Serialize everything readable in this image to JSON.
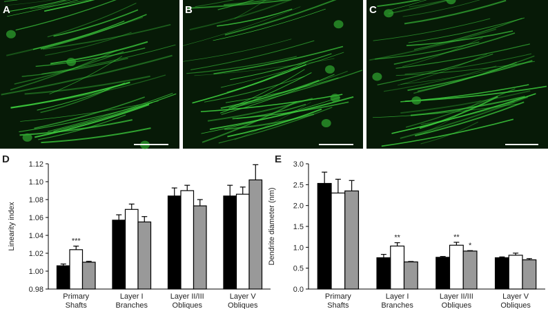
{
  "panels": [
    "A",
    "B",
    "C"
  ],
  "chart_data": [
    {
      "type": "bar",
      "panel_label": "D",
      "y_label": "Linearity index",
      "categories": [
        "Primary\nShafts",
        "Layer I\nBranches",
        "Layer II/III\nObliques",
        "Layer V\nObliques"
      ],
      "series": [
        {
          "color": "#000000",
          "values": [
            1.006,
            1.057,
            1.084,
            1.084
          ],
          "errors": [
            0.002,
            0.006,
            0.009,
            0.012
          ]
        },
        {
          "color": "#ffffff",
          "values": [
            1.024,
            1.069,
            1.09,
            1.086
          ],
          "errors": [
            0.004,
            0.006,
            0.006,
            0.008
          ]
        },
        {
          "color": "#999999",
          "values": [
            1.01,
            1.055,
            1.073,
            1.102
          ],
          "errors": [
            0.001,
            0.006,
            0.007,
            0.017
          ]
        }
      ],
      "annotations": [
        {
          "text": "***",
          "series": 1,
          "category": 0
        }
      ],
      "ylim": [
        0.98,
        1.12
      ],
      "yticks": [
        0.98,
        {
          "value": 1.0,
          "label": "1.00"
        },
        1.02,
        1.04,
        1.06,
        1.08,
        {
          "value": 1.1,
          "label": "1.10"
        },
        1.12
      ]
    },
    {
      "type": "bar",
      "panel_label": "E",
      "y_label": "Dendrite diameter (nm)",
      "categories": [
        "Primary\nShafts",
        "Layer I\nBranches",
        "Layer II/III\nObliques",
        "Layer V\nObliques"
      ],
      "series": [
        {
          "color": "#000000",
          "values": [
            2.53,
            0.75,
            0.76,
            0.75
          ],
          "errors": [
            0.27,
            0.08,
            0.02,
            0.02
          ]
        },
        {
          "color": "#ffffff",
          "values": [
            2.3,
            1.03,
            1.05,
            0.81
          ],
          "errors": [
            0.33,
            0.08,
            0.07,
            0.05
          ]
        },
        {
          "color": "#999999",
          "values": [
            2.35,
            0.65,
            0.91,
            0.7
          ],
          "errors": [
            0.25,
            0.01,
            0.01,
            0.03
          ]
        }
      ],
      "annotations": [
        {
          "text": "**",
          "series": 1,
          "category": 1
        },
        {
          "text": "**",
          "series": 1,
          "category": 2
        },
        {
          "text": "*",
          "series": 2,
          "category": 2
        }
      ],
      "ylim": [
        0,
        3
      ],
      "yticks": [
        {
          "value": 0,
          "label": "0.0"
        },
        0.5,
        {
          "value": 1,
          "label": "1.0"
        },
        1.5,
        {
          "value": 2,
          "label": "2.0"
        },
        2.5,
        {
          "value": 3,
          "label": "3.0"
        }
      ]
    }
  ]
}
